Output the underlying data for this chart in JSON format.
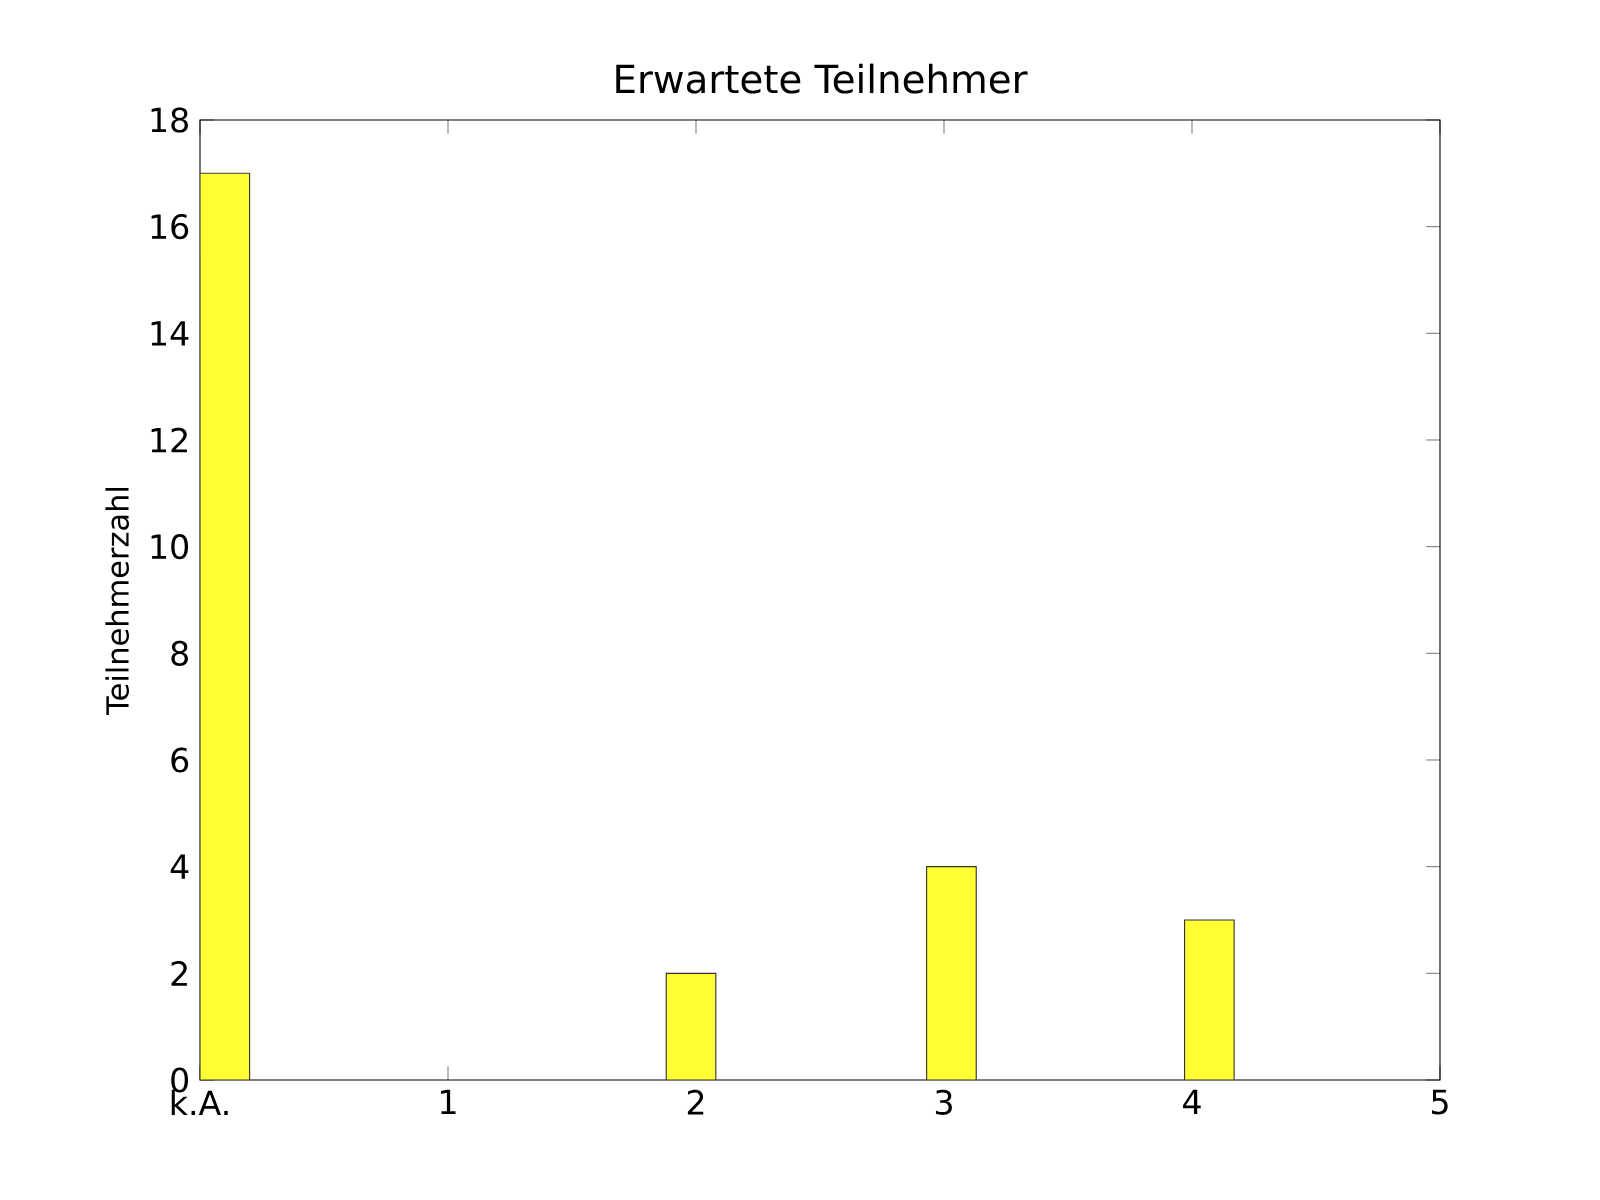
{
  "chart_data": {
    "type": "bar",
    "title": "Erwartete Teilnehmer",
    "ylabel": "Teilnehmerzahl",
    "x": [
      0.1,
      1.98,
      3.03,
      4.07
    ],
    "values": [
      17,
      2,
      4,
      3
    ],
    "color": "#ffff33",
    "xlim": [
      0,
      5
    ],
    "xticks": [
      {
        "value": 0,
        "label": "k.A."
      },
      1,
      2,
      3,
      4,
      5
    ],
    "ylim": [
      0,
      18
    ],
    "yticks": [
      0,
      2,
      4,
      6,
      8,
      10,
      12,
      14,
      16,
      18
    ],
    "grid": false
  }
}
